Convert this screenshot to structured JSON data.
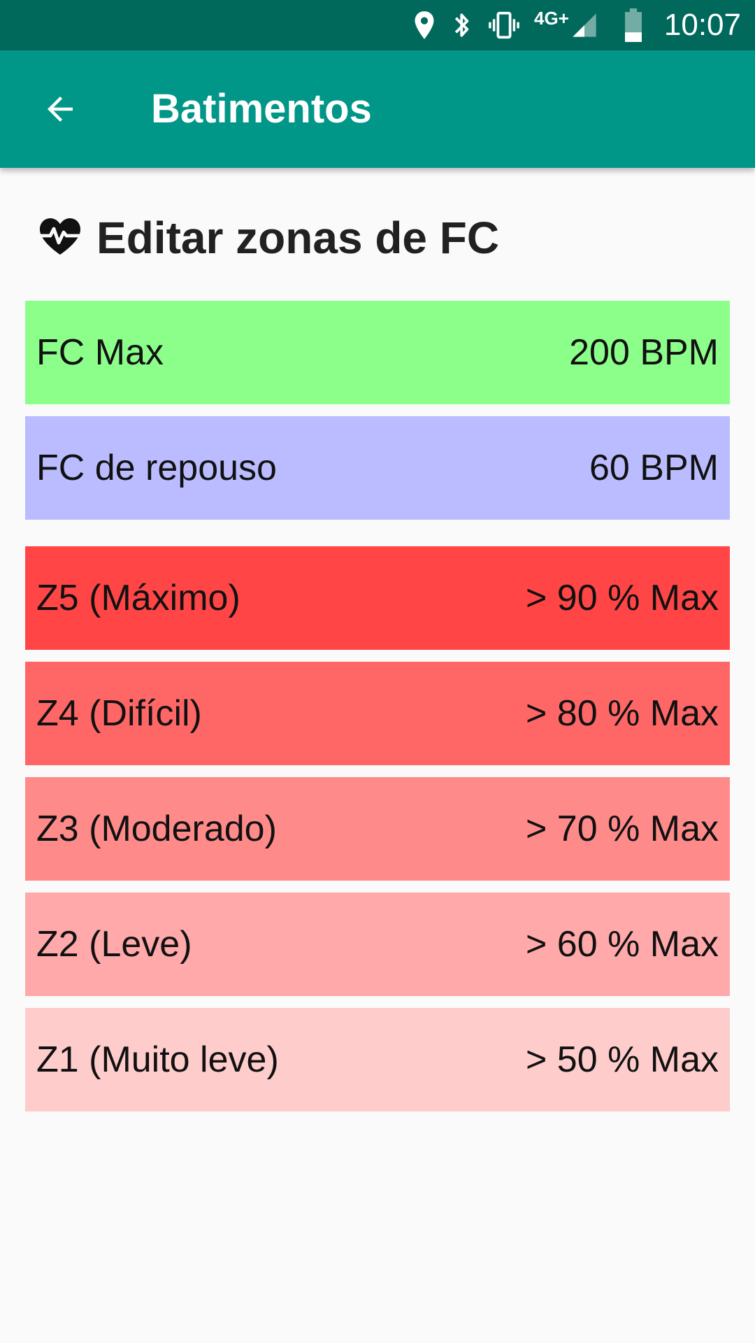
{
  "status_bar": {
    "network": "4G+",
    "time": "10:07",
    "icons": [
      "location-icon",
      "bluetooth-icon",
      "vibrate-icon",
      "signal-icon",
      "battery-icon"
    ]
  },
  "app_bar": {
    "title": "Batimentos",
    "back_icon": "arrow-back-icon"
  },
  "section": {
    "title": "Editar zonas de FC",
    "icon": "heartbeat-icon"
  },
  "heart_rate": {
    "max": {
      "label": "FC Max",
      "value": "200 BPM",
      "color": "#8cff8a"
    },
    "rest": {
      "label": "FC de repouso",
      "value": "60 BPM",
      "color": "#babcff"
    }
  },
  "zones": [
    {
      "label": "Z5 (Máximo)",
      "value": "> 90 % Max",
      "color": "#ff4545"
    },
    {
      "label": "Z4 (Difícil)",
      "value": "> 80 % Max",
      "color": "#ff6767"
    },
    {
      "label": "Z3 (Moderado)",
      "value": "> 70 % Max",
      "color": "#ff8a8a"
    },
    {
      "label": "Z2 (Leve)",
      "value": "> 60 % Max",
      "color": "#ffa9aa"
    },
    {
      "label": "Z1 (Muito leve)",
      "value": "> 50 % Max",
      "color": "#ffcccc"
    }
  ],
  "colors": {
    "status_bar": "#00695c",
    "app_bar": "#009688",
    "background": "#fafafa"
  }
}
